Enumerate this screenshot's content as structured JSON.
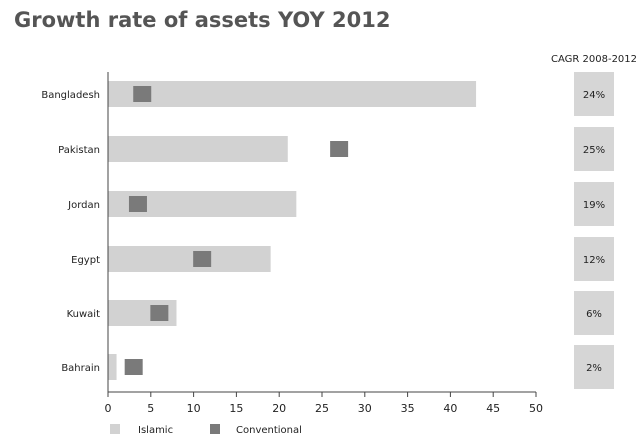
{
  "chart_data": {
    "type": "bar",
    "title": "Growth rate of assets YOY 2012",
    "categories": [
      "Bangladesh",
      "Pakistan",
      "Jordan",
      "Egypt",
      "Kuwait",
      "Bahrain"
    ],
    "series": [
      {
        "name": "Islamic",
        "values": [
          43,
          21,
          22,
          19,
          8,
          1
        ]
      },
      {
        "name": "Conventional",
        "values": [
          4,
          27,
          3.5,
          11,
          6,
          3
        ]
      }
    ],
    "cagr": {
      "header": "CAGR 2008-2012",
      "values": [
        "24%",
        "25%",
        "19%",
        "12%",
        "6%",
        "2%"
      ]
    },
    "xticks": [
      "0",
      "5",
      "10",
      "15",
      "20",
      "25",
      "30",
      "35",
      "40",
      "45",
      "50"
    ],
    "xlim": [
      0,
      50
    ],
    "legend_position": "bottom-left",
    "colors": {
      "islamic": "#d2d2d2",
      "conventional": "#7a7a7a",
      "cagr_box": "#d6d6d6",
      "text": "#222222",
      "title": "#555555",
      "axis": "#444444"
    }
  }
}
